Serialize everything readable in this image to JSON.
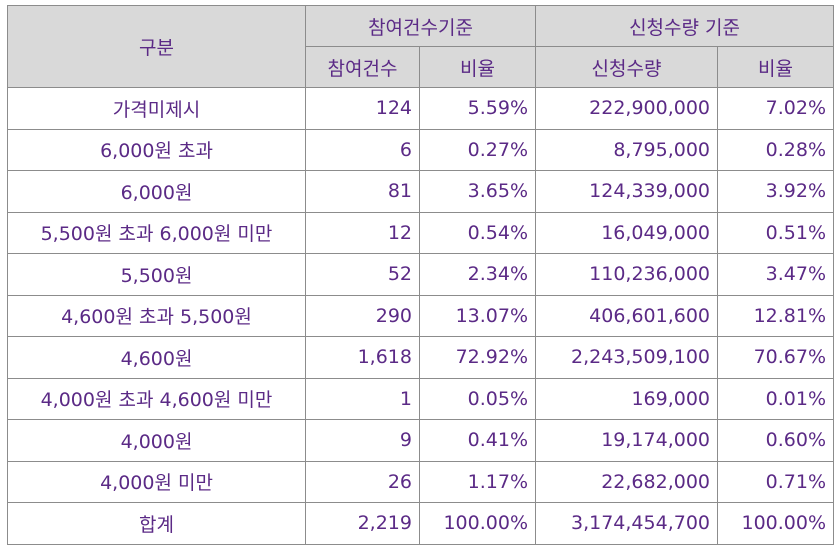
{
  "header": {
    "group_label": "구분",
    "participation_group": "참여건수기준",
    "quantity_group": "신청수량 기준",
    "participation_count": "참여건수",
    "participation_ratio": "비율",
    "quantity_amount": "신청수량",
    "quantity_ratio": "비율"
  },
  "rows": [
    {
      "label": "가격미제시",
      "count": "124",
      "count_ratio": "5.59%",
      "quantity": "222,900,000",
      "quantity_ratio": "7.02%"
    },
    {
      "label": "6,000원 초과",
      "count": "6",
      "count_ratio": "0.27%",
      "quantity": "8,795,000",
      "quantity_ratio": "0.28%"
    },
    {
      "label": "6,000원",
      "count": "81",
      "count_ratio": "3.65%",
      "quantity": "124,339,000",
      "quantity_ratio": "3.92%"
    },
    {
      "label": "5,500원 초과 6,000원 미만",
      "count": "12",
      "count_ratio": "0.54%",
      "quantity": "16,049,000",
      "quantity_ratio": "0.51%"
    },
    {
      "label": "5,500원",
      "count": "52",
      "count_ratio": "2.34%",
      "quantity": "110,236,000",
      "quantity_ratio": "3.47%"
    },
    {
      "label": "4,600원 초과 5,500원",
      "count": "290",
      "count_ratio": "13.07%",
      "quantity": "406,601,600",
      "quantity_ratio": "12.81%"
    },
    {
      "label": "4,600원",
      "count": "1,618",
      "count_ratio": "72.92%",
      "quantity": "2,243,509,100",
      "quantity_ratio": "70.67%"
    },
    {
      "label": "4,000원 초과 4,600원 미만",
      "count": "1",
      "count_ratio": "0.05%",
      "quantity": "169,000",
      "quantity_ratio": "0.01%"
    },
    {
      "label": "4,000원",
      "count": "9",
      "count_ratio": "0.41%",
      "quantity": "19,174,000",
      "quantity_ratio": "0.60%"
    },
    {
      "label": "4,000원 미만",
      "count": "26",
      "count_ratio": "1.17%",
      "quantity": "22,682,000",
      "quantity_ratio": "0.71%"
    },
    {
      "label": "합계",
      "count": "2,219",
      "count_ratio": "100.00%",
      "quantity": "3,174,454,700",
      "quantity_ratio": "100.00%"
    }
  ],
  "colors": {
    "text": "#5b2a86",
    "header_bg": "#d9d9d9",
    "border": "#8c8c8c"
  }
}
